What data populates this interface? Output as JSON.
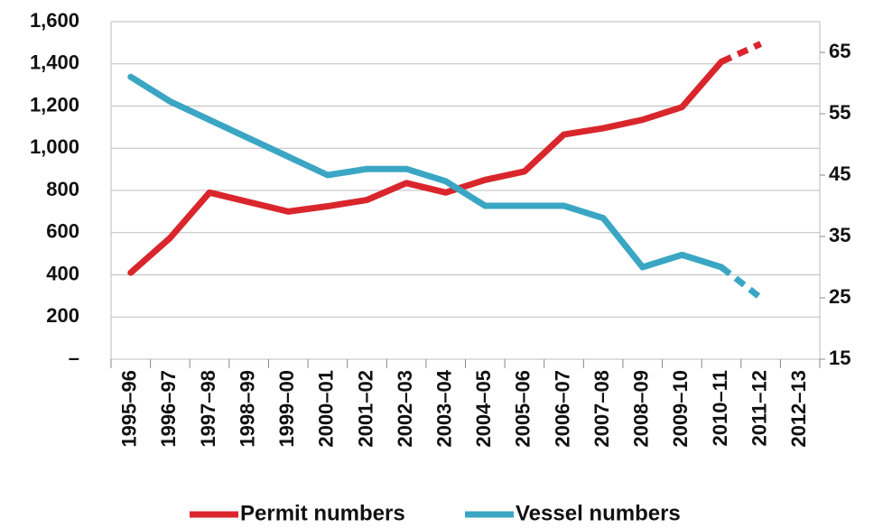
{
  "chart_data": {
    "type": "line",
    "categories": [
      "1995–96",
      "1996–97",
      "1997–98",
      "1998–99",
      "1999–00",
      "2000–01",
      "2001–02",
      "2002–03",
      "2003–04",
      "2004–05",
      "2005–06",
      "2006–07",
      "2007–08",
      "2008–09",
      "2009–10",
      "2010–11",
      "2011–12",
      "2012–13"
    ],
    "series": [
      {
        "name": "Permit numbers",
        "color": "#d9262c",
        "values": [
          410,
          575,
          790,
          745,
          700,
          725,
          755,
          835,
          790,
          850,
          890,
          1065,
          1095,
          1135,
          1195,
          1410,
          1495,
          null
        ]
      },
      {
        "name": "Vessel numbers",
        "color": "#3aa6c4",
        "axis": "y2",
        "values": [
          61,
          57,
          54,
          51,
          48,
          45,
          46,
          46,
          44,
          40,
          40,
          40,
          38,
          30,
          32,
          30,
          25,
          null
        ]
      }
    ],
    "ylim": [
      0,
      1600
    ],
    "yticks": [
      {
        "value": 0,
        "label": "–"
      },
      200,
      400,
      600,
      800,
      {
        "value": 1000,
        "label": "1,000"
      },
      {
        "value": 1200,
        "label": "1,200"
      },
      {
        "value": 1400,
        "label": "1,400"
      },
      {
        "value": 1600,
        "label": "1,600"
      }
    ],
    "y2lim": [
      15,
      70
    ],
    "y2ticks": [
      15,
      25,
      35,
      45,
      55,
      65
    ],
    "grid": true,
    "legend": "bottom"
  }
}
